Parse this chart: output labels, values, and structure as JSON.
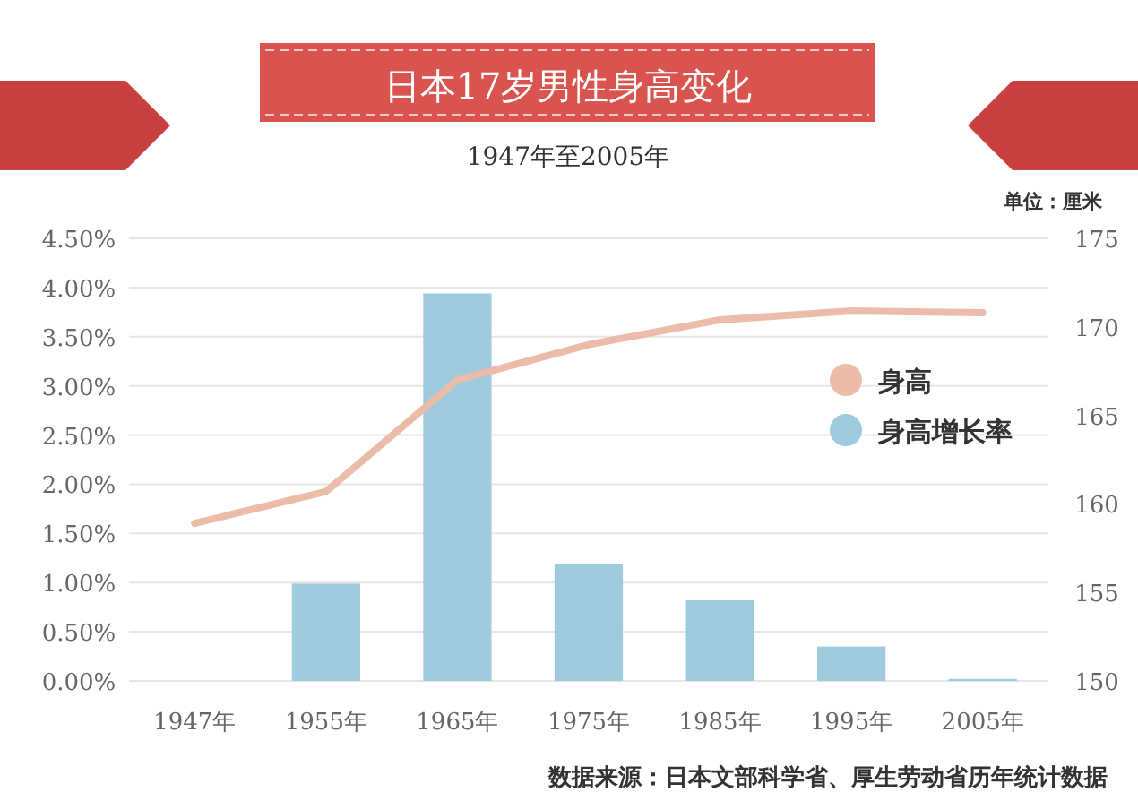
{
  "chart_data": {
    "type": "bar",
    "title": "日本17岁男性身高变化",
    "subtitle": "1947年至2005年",
    "y2label": "单位：厘米",
    "annotations": [
      "数据来源：日本文部科学省、厚生劳动省历年统计数据"
    ],
    "categories": [
      "1947年",
      "1955年",
      "1965年",
      "1975年",
      "1985年",
      "1995年",
      "2005年"
    ],
    "series": [
      {
        "name": "身高",
        "type": "line",
        "axis": "y2",
        "color": "#ebbcaa",
        "values": [
          158.9,
          160.7,
          167.0,
          169.0,
          170.4,
          170.9,
          170.8
        ]
      },
      {
        "name": "身高增长率",
        "color": "#9ecbdd",
        "values": [
          null,
          0.99,
          3.94,
          1.19,
          0.82,
          0.35,
          0.02
        ]
      }
    ],
    "ylim": [
      0,
      4.5
    ],
    "yticks": [
      {
        "value": 0,
        "label": "0.00%"
      },
      {
        "value": 0.5,
        "label": "0.50%"
      },
      {
        "value": 1,
        "label": "1.00%"
      },
      {
        "value": 1.5,
        "label": "1.50%"
      },
      {
        "value": 2,
        "label": "2.00%"
      },
      {
        "value": 2.5,
        "label": "2.50%"
      },
      {
        "value": 3,
        "label": "3.00%"
      },
      {
        "value": 3.5,
        "label": "3.50%"
      },
      {
        "value": 4,
        "label": "4.00%"
      },
      {
        "value": 4.5,
        "label": "4.50%"
      }
    ],
    "y2lim": [
      150,
      175
    ],
    "y2ticks": [
      150,
      155,
      160,
      165,
      170,
      175
    ],
    "grid": "y",
    "legend": "right"
  }
}
